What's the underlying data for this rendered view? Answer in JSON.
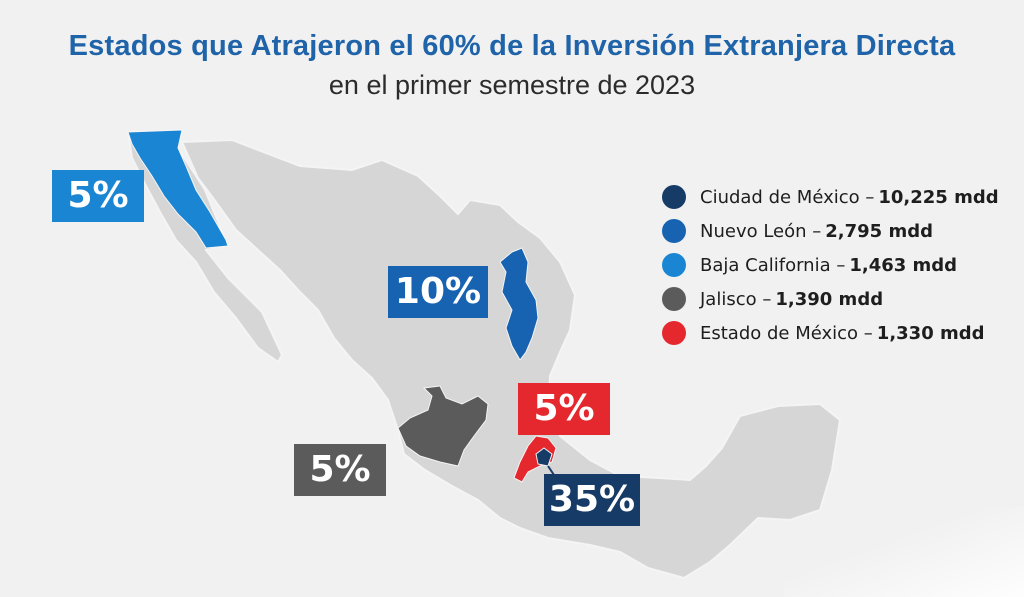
{
  "title": "Estados que Atrajeron el 60% de la Inversión Extranjera Directa",
  "subtitle": "en el primer semestre de 2023",
  "colors": {
    "cdmx": "#163b66",
    "nuevo_leon": "#1763b2",
    "baja_california": "#1a86d3",
    "jalisco": "#5b5b5b",
    "estado_mexico": "#e5282d",
    "map_base": "#d6d6d6",
    "map_border": "#f4f4f4"
  },
  "badges": {
    "baja_california": "5%",
    "nuevo_leon": "10%",
    "estado_mexico": "5%",
    "jalisco": "5%",
    "cdmx": "35%"
  },
  "legend": [
    {
      "state": "Ciudad de México –",
      "value": "10,225 mdd",
      "color": "#163b66"
    },
    {
      "state": "Nuevo León –",
      "value": "2,795 mdd",
      "color": "#1763b2"
    },
    {
      "state": "Baja California –",
      "value": "1,463 mdd",
      "color": "#1a86d3"
    },
    {
      "state": "Jalisco –",
      "value": "1,390 mdd",
      "color": "#5b5b5b"
    },
    {
      "state": "Estado de México –",
      "value": "1,330 mdd",
      "color": "#e5282d"
    }
  ]
}
